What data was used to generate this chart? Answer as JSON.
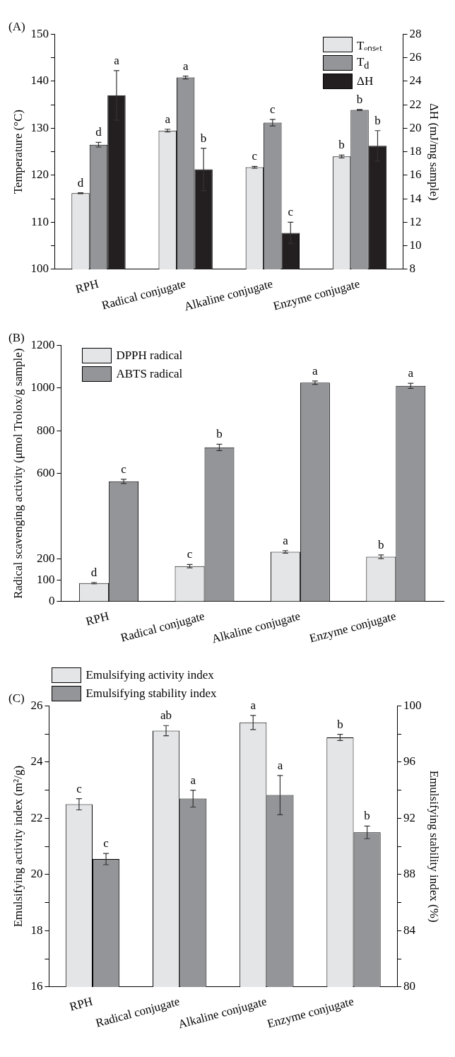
{
  "chart_data": [
    {
      "type": "bar",
      "title": "(A)",
      "categories": [
        "RPH",
        "Radical conjugate",
        "Alkaline conjugate",
        "Enzyme conjugate"
      ],
      "ylabel": "Temperature (°C)",
      "y2label": "ΔH (mJ/mg sample)",
      "ylim": [
        100,
        150
      ],
      "yticks": [
        100,
        {
          "value": 105,
          "label": null
        },
        110,
        {
          "value": 115,
          "label": null
        },
        120,
        {
          "value": 125,
          "label": null
        },
        130,
        {
          "value": 135,
          "label": null
        },
        140,
        {
          "value": 145,
          "label": null
        },
        150
      ],
      "y2lim": [
        8,
        28
      ],
      "y2ticks": [
        8,
        10,
        12,
        14,
        16,
        18,
        20,
        22,
        24,
        26,
        28
      ],
      "legend": "top right",
      "series": [
        {
          "name": "Tₒₙₛₑₜ",
          "color": "#e4e5e7",
          "values": [
            116.2,
            129.5,
            121.7,
            124.0
          ],
          "errors": [
            0.1,
            0.3,
            0.2,
            0.3
          ],
          "value_labels": [
            "d",
            "a",
            "c",
            "b"
          ]
        },
        {
          "name": "T$_{d}$",
          "color": "#939598",
          "values": [
            126.5,
            140.8,
            131.2,
            133.9
          ],
          "errors": [
            0.5,
            0.3,
            0.7,
            0.1
          ],
          "value_labels": [
            "d",
            "a",
            "c",
            "b"
          ]
        },
        {
          "name": "ΔH",
          "color": "#231f20",
          "axis": "y2",
          "values": [
            22.8,
            16.5,
            11.1,
            18.5
          ],
          "errors": [
            2.1,
            1.8,
            0.9,
            1.3
          ],
          "value_labels": [
            "a",
            "b",
            "c",
            "b"
          ]
        }
      ]
    },
    {
      "type": "bar",
      "title": "(B)",
      "categories": [
        "RPH",
        "Radical conjugate",
        "Alkaline conjugate",
        "Enzyme conjugate"
      ],
      "ylabel": "Radical scavenging activity (μmol Trolox/g sample)",
      "ylim": [
        0,
        1200
      ],
      "yticks": [
        0,
        100,
        200,
        600,
        800,
        1000,
        1200
      ],
      "legend": "top left",
      "series": [
        {
          "name": "DPPH radical",
          "color": "#e4e5e7",
          "values": [
            87,
            166,
            233,
            210
          ],
          "errors": [
            3,
            8,
            6,
            9
          ],
          "value_labels": [
            "d",
            "c",
            "a",
            "b"
          ]
        },
        {
          "name": "ABTS radical",
          "color": "#939598",
          "values": [
            563,
            722,
            1025,
            1010
          ],
          "errors": [
            10,
            15,
            8,
            12
          ],
          "value_labels": [
            "c",
            "b",
            "a",
            "a"
          ]
        }
      ]
    },
    {
      "type": "bar",
      "title": "(C)",
      "categories": [
        "RPH",
        "Radical conjugate",
        "Alkaline conjugate",
        "Enzyme conjugate"
      ],
      "ylabel": "Emulsifying activity index (m²/g)",
      "y2label": "Emulsifying stability index (%)",
      "ylim": [
        16,
        26
      ],
      "yticks": [
        16,
        {
          "value": 17,
          "label": null
        },
        18,
        {
          "value": 19,
          "label": null
        },
        20,
        {
          "value": 21,
          "label": null
        },
        22,
        {
          "value": 23,
          "label": null
        },
        24,
        {
          "value": 25,
          "label": null
        },
        26
      ],
      "y2lim": [
        80,
        100
      ],
      "y2ticks": [
        80,
        {
          "value": 82,
          "label": null
        },
        84,
        {
          "value": 86,
          "label": null
        },
        88,
        {
          "value": 90,
          "label": null
        },
        92,
        {
          "value": 94,
          "label": null
        },
        96,
        {
          "value": 98,
          "label": null
        },
        100
      ],
      "legend": "top",
      "series": [
        {
          "name": "Emulsifying activity index",
          "color": "#e4e5e7",
          "values": [
            22.5,
            25.12,
            25.41,
            24.88
          ],
          "errors": [
            0.2,
            0.18,
            0.25,
            0.11
          ],
          "value_labels": [
            "c",
            "ab",
            "a",
            "b"
          ]
        },
        {
          "name": "Emulsifying stability index",
          "color": "#939598",
          "axis": "y2",
          "values": [
            89.1,
            93.4,
            93.65,
            91.0
          ],
          "errors": [
            0.4,
            0.6,
            1.4,
            0.45
          ],
          "value_labels": [
            "c",
            "a",
            "a",
            "b"
          ]
        }
      ]
    }
  ]
}
